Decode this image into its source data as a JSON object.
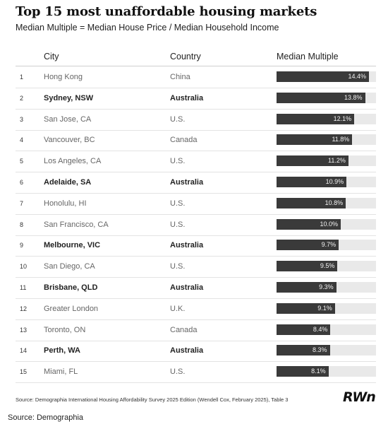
{
  "chart_data": {
    "type": "table",
    "title": "Top 15 most unaffordable housing markets",
    "subtitle": "Median Multiple = Median House Price / Median Household Income",
    "columns": [
      "City",
      "Country",
      "Median Multiple"
    ],
    "max_value": 15.5,
    "rows": [
      {
        "rank": "1",
        "city": "Hong Kong",
        "country": "China",
        "value": 14.4,
        "label": "14.4%",
        "bold": false
      },
      {
        "rank": "2",
        "city": "Sydney, NSW",
        "country": "Australia",
        "value": 13.8,
        "label": "13.8%",
        "bold": true
      },
      {
        "rank": "3",
        "city": "San Jose, CA",
        "country": "U.S.",
        "value": 12.1,
        "label": "12.1%",
        "bold": false
      },
      {
        "rank": "4",
        "city": "Vancouver, BC",
        "country": "Canada",
        "value": 11.8,
        "label": "11.8%",
        "bold": false
      },
      {
        "rank": "5",
        "city": "Los Angeles, CA",
        "country": "U.S.",
        "value": 11.2,
        "label": "11.2%",
        "bold": false
      },
      {
        "rank": "6",
        "city": "Adelaide, SA",
        "country": "Australia",
        "value": 10.9,
        "label": "10.9%",
        "bold": true
      },
      {
        "rank": "7",
        "city": "Honolulu, HI",
        "country": "U.S.",
        "value": 10.8,
        "label": "10.8%",
        "bold": false
      },
      {
        "rank": "8",
        "city": "San Francisco, CA",
        "country": "U.S.",
        "value": 10.0,
        "label": "10.0%",
        "bold": false
      },
      {
        "rank": "9",
        "city": "Melbourne, VIC",
        "country": "Australia",
        "value": 9.7,
        "label": "9.7%",
        "bold": true
      },
      {
        "rank": "10",
        "city": "San Diego, CA",
        "country": "U.S.",
        "value": 9.5,
        "label": "9.5%",
        "bold": false
      },
      {
        "rank": "11",
        "city": "Brisbane, QLD",
        "country": "Australia",
        "value": 9.3,
        "label": "9.3%",
        "bold": true
      },
      {
        "rank": "12",
        "city": "Greater London",
        "country": "U.K.",
        "value": 9.1,
        "label": "9.1%",
        "bold": false
      },
      {
        "rank": "13",
        "city": "Toronto, ON",
        "country": "Canada",
        "value": 8.4,
        "label": "8.4%",
        "bold": false
      },
      {
        "rank": "14",
        "city": "Perth, WA",
        "country": "Australia",
        "value": 8.3,
        "label": "8.3%",
        "bold": true
      },
      {
        "rank": "15",
        "city": "Miami, FL",
        "country": "U.S.",
        "value": 8.1,
        "label": "8.1%",
        "bold": false
      }
    ]
  },
  "footer": {
    "source_note": "Source: Demographia International Housing Affordability Survey 2025 Edition (Wendell Cox, February 2025), Table 3",
    "logo": "RWn",
    "source": "Source: Demographia"
  },
  "colors": {
    "bar": "#3a3a3a",
    "track": "#e9e9e9",
    "row_divider": "#e3e3e3"
  }
}
